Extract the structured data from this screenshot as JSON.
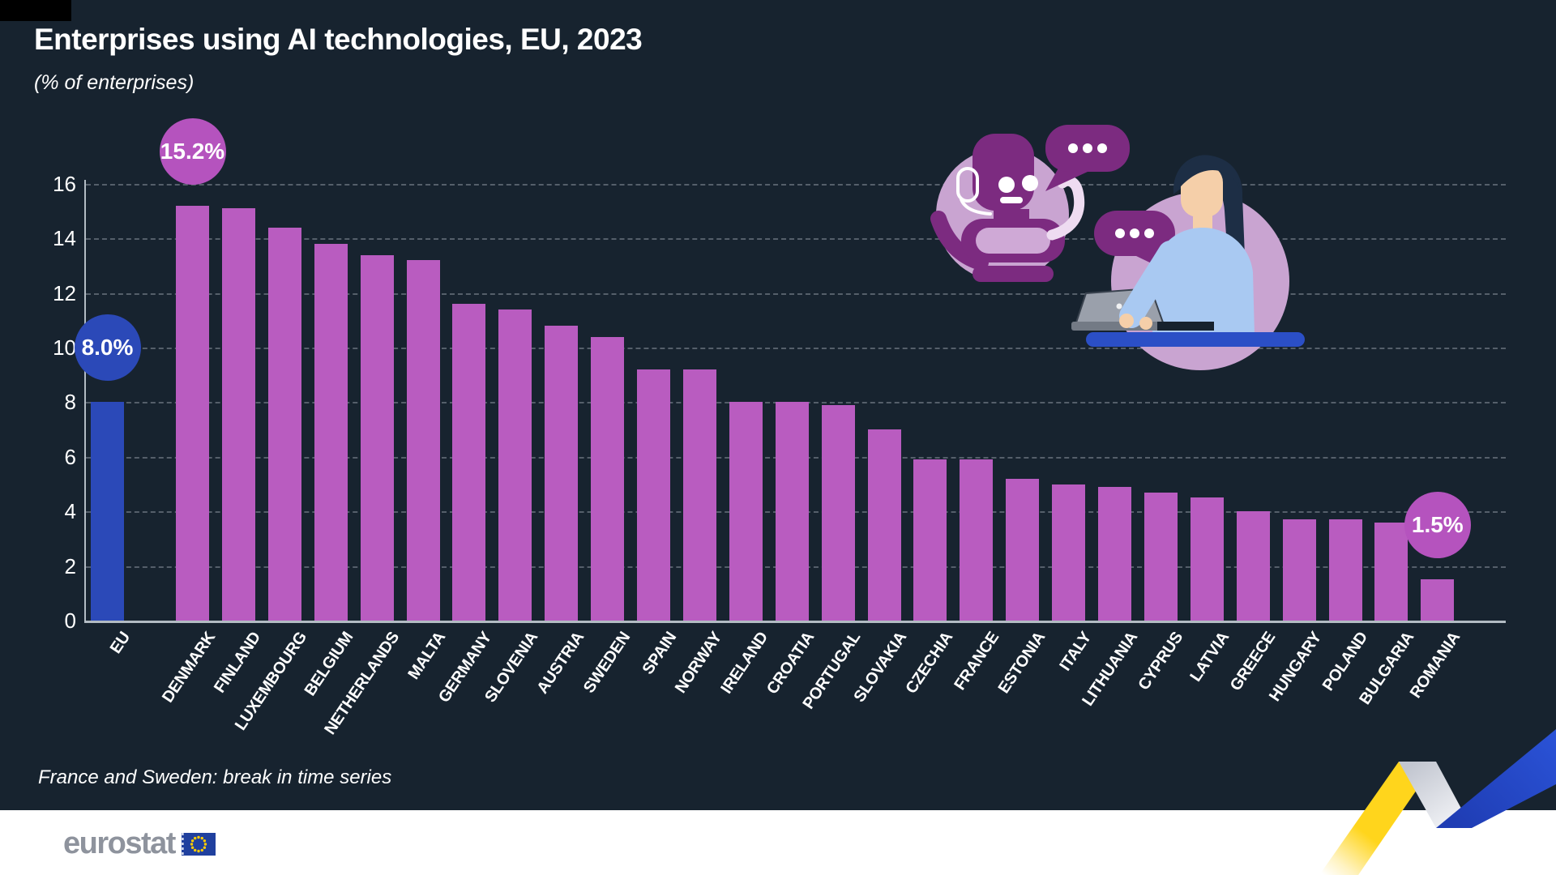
{
  "header": {
    "title": "Enterprises using AI technologies, EU, 2023",
    "subtitle": "(% of enterprises)"
  },
  "footnote": "France and Sweden: break in time series",
  "footer": {
    "logo_text": "eurostat"
  },
  "colors": {
    "background": "#17232f",
    "bar_country": "#b95cc0",
    "bar_eu": "#2b49b8",
    "callout_country": "#b553be",
    "callout_eu": "#2b49b8",
    "gridline": "#939ca6",
    "axis": "#c3ccd4",
    "text": "#ffffff",
    "footer_bg": "#ffffff",
    "logo_gray": "#8e939d",
    "flag_blue": "#20409e",
    "star_yellow": "#ffcc00",
    "ribbon_yellow": "#ffd51c",
    "ribbon_blue": "#2447c5",
    "illustration_lavender": "#c9a4d1",
    "illustration_purple": "#7c2b80"
  },
  "chart_data": {
    "type": "bar",
    "title": "Enterprises using AI technologies, EU, 2023",
    "unit": "% of enterprises",
    "xlabel": "",
    "ylabel": "",
    "ylim": [
      0,
      16
    ],
    "yticks": [
      0,
      2,
      4,
      6,
      8,
      10,
      12,
      14,
      16
    ],
    "grid": "horizontal-dashed",
    "legend": "none",
    "categories": [
      "EU",
      "DENMARK",
      "FINLAND",
      "LUXEMBOURG",
      "BELGIUM",
      "NETHERLANDS",
      "MALTA",
      "GERMANY",
      "SLOVENIA",
      "AUSTRIA",
      "SWEDEN",
      "SPAIN",
      "NORWAY",
      "IRELAND",
      "CROATIA",
      "PORTUGAL",
      "SLOVAKIA",
      "CZECHIA",
      "FRANCE",
      "ESTONIA",
      "ITALY",
      "LITHUANIA",
      "CYPRUS",
      "LATVIA",
      "GREECE",
      "HUNGARY",
      "POLAND",
      "BULGARIA",
      "ROMANIA"
    ],
    "values": [
      8.0,
      15.2,
      15.1,
      14.4,
      13.8,
      13.4,
      13.2,
      11.6,
      11.4,
      10.8,
      10.4,
      9.2,
      9.2,
      8.0,
      8.0,
      7.9,
      7.0,
      5.9,
      5.9,
      5.2,
      5.0,
      4.9,
      4.7,
      4.5,
      4.0,
      3.7,
      3.7,
      3.6,
      1.5
    ],
    "callouts": [
      {
        "category": "EU",
        "text": "8.0%",
        "style": "eu"
      },
      {
        "category": "DENMARK",
        "text": "15.2%",
        "style": "country"
      },
      {
        "category": "ROMANIA",
        "text": "1.5%",
        "style": "country"
      }
    ]
  }
}
